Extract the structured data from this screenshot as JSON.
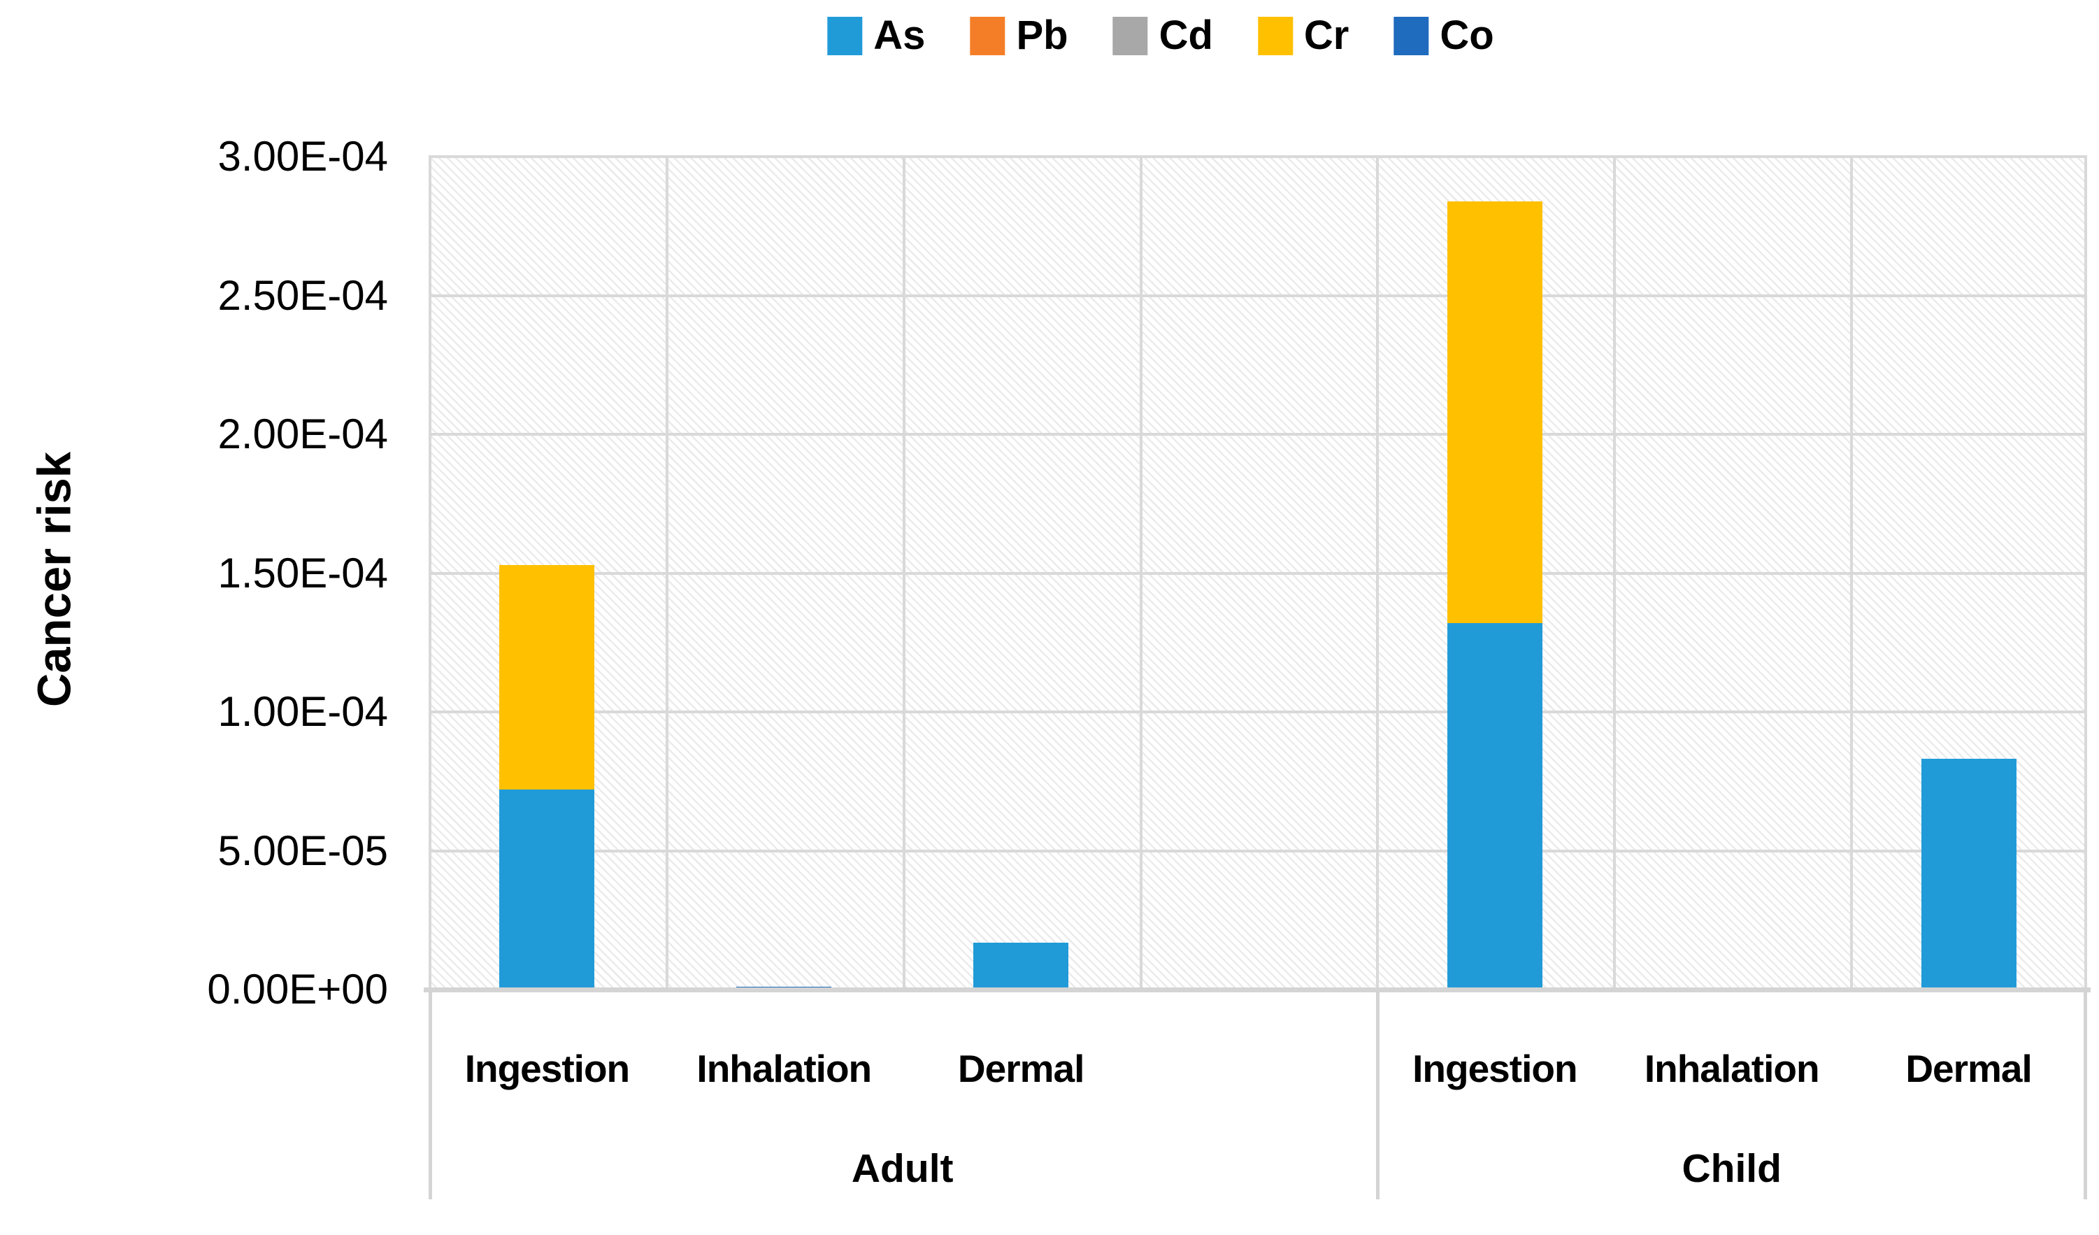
{
  "chart_data": {
    "type": "bar",
    "stacked": true,
    "ylabel": "Cancer risk",
    "ylim": [
      0,
      0.0003
    ],
    "grid": true,
    "legend_position": "top-center",
    "plot_background": "diagonal-hatch",
    "y_ticks": [
      {
        "label": "3.00E-04",
        "value": 0.0003
      },
      {
        "label": "2.50E-04",
        "value": 0.00025
      },
      {
        "label": "2.00E-04",
        "value": 0.0002
      },
      {
        "label": "1.50E-04",
        "value": 0.00015
      },
      {
        "label": "1.00E-04",
        "value": 0.0001
      },
      {
        "label": "5.00E-05",
        "value": 5e-05
      },
      {
        "label": "0.00E+00",
        "value": 0
      }
    ],
    "groups": [
      {
        "label": "Adult",
        "categories": [
          "Ingestion",
          "Inhalation",
          "Dermal"
        ]
      },
      {
        "label": "Child",
        "categories": [
          "Ingestion",
          "Inhalation",
          "Dermal"
        ]
      }
    ],
    "series": [
      {
        "name": "As",
        "color": "#219BD8",
        "values": [
          7.2e-05,
          0,
          1.7e-05,
          0.000132,
          0,
          8.3e-05
        ]
      },
      {
        "name": "Pb",
        "color": "#F47E27",
        "values": [
          0,
          0,
          0,
          0,
          0,
          0
        ]
      },
      {
        "name": "Cd",
        "color": "#A8A8A8",
        "values": [
          0,
          0,
          0,
          0,
          0,
          0
        ]
      },
      {
        "name": "Cr",
        "color": "#FFC000",
        "values": [
          8.1e-05,
          0,
          0,
          0.000152,
          0,
          0
        ]
      },
      {
        "name": "Co",
        "color": "#1F6BBE",
        "values": [
          0,
          1e-06,
          0,
          0,
          0,
          0
        ]
      }
    ],
    "colors": {
      "gridline": "#d9d9d9",
      "axis_line": "#d4d4d4",
      "text": "#000000"
    }
  }
}
